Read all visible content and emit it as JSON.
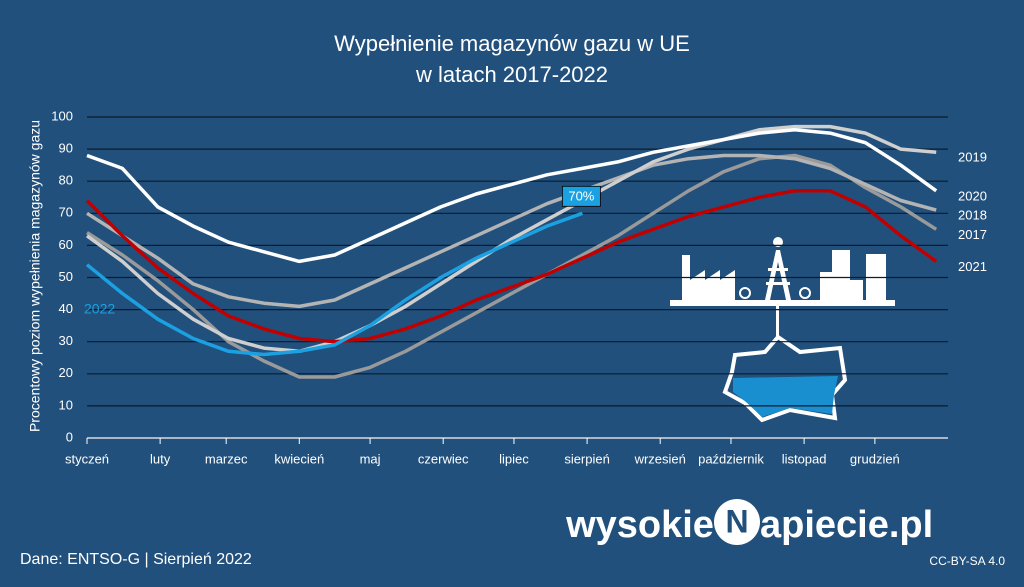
{
  "chart_data": {
    "type": "line",
    "title": [
      "Wypełnienie magazynów gazu w UE",
      "w latach 2017-2022"
    ],
    "y_label": "Procentowy poziom wypełnienia magazynów gazu",
    "x": [
      0,
      15,
      30,
      45,
      60,
      75,
      90,
      105,
      120,
      135,
      150,
      165,
      180,
      195,
      210,
      225,
      240,
      255,
      270,
      285,
      300,
      315,
      330,
      345,
      360
    ],
    "xlim": [
      0,
      365
    ],
    "xticks": [
      {
        "value": 0,
        "label": "styczeń"
      },
      {
        "value": 31,
        "label": "luty"
      },
      {
        "value": 59,
        "label": "marzec"
      },
      {
        "value": 90,
        "label": "kwiecień"
      },
      {
        "value": 120,
        "label": "maj"
      },
      {
        "value": 151,
        "label": "czerwiec"
      },
      {
        "value": 181,
        "label": "lipiec"
      },
      {
        "value": 212,
        "label": "sierpień"
      },
      {
        "value": 243,
        "label": "wrzesień"
      },
      {
        "value": 273,
        "label": "październik"
      },
      {
        "value": 304,
        "label": "listopad"
      },
      {
        "value": 334,
        "label": "grudzień"
      }
    ],
    "ylim": [
      0,
      100
    ],
    "yticks": [
      0,
      10,
      20,
      30,
      40,
      50,
      60,
      70,
      80,
      90,
      100
    ],
    "grid": true,
    "series": [
      {
        "name": "2017",
        "color": "#9a9a9a",
        "values": [
          64,
          57,
          49,
          40,
          30,
          24,
          19,
          19,
          22,
          27,
          33,
          39,
          45,
          51,
          57,
          63,
          70,
          77,
          83,
          87,
          88,
          85,
          78,
          72,
          65
        ]
      },
      {
        "name": "2018",
        "color": "#b4b4b4",
        "values": [
          70,
          63,
          56,
          48,
          44,
          42,
          41,
          43,
          48,
          53,
          58,
          63,
          68,
          73,
          77,
          81,
          85,
          87,
          88,
          88,
          87,
          84,
          79,
          74,
          71
        ]
      },
      {
        "name": "2019",
        "color": "#cfcfcf",
        "values": [
          63,
          55,
          45,
          37,
          31,
          28,
          27,
          30,
          35,
          41,
          48,
          55,
          62,
          68,
          74,
          80,
          86,
          90,
          93,
          96,
          97,
          97,
          95,
          90,
          89
        ]
      },
      {
        "name": "2020",
        "color": "#ffffff",
        "values": [
          88,
          84,
          72,
          66,
          61,
          58,
          55,
          57,
          62,
          67,
          72,
          76,
          79,
          82,
          84,
          86,
          89,
          91,
          93,
          95,
          96,
          95,
          92,
          85,
          77
        ]
      },
      {
        "name": "2021",
        "color": "#c00000",
        "values": [
          74,
          63,
          53,
          45,
          38,
          34,
          31,
          30,
          31,
          34,
          38,
          43,
          47,
          51,
          56,
          61,
          65,
          69,
          72,
          75,
          77,
          77,
          72,
          63,
          55
        ]
      },
      {
        "name": "2022",
        "color": "#1ba1e2",
        "values": [
          54,
          45,
          37,
          31,
          27,
          26,
          27,
          29,
          35,
          43,
          50,
          56,
          61,
          66,
          70,
          null,
          null,
          null,
          null,
          null,
          null,
          null,
          null,
          null,
          null
        ],
        "value_labels": [
          null,
          null,
          null,
          null,
          null,
          null,
          null,
          null,
          null,
          null,
          null,
          null,
          null,
          null,
          "70%",
          null,
          null,
          null,
          null,
          null,
          null,
          null,
          null,
          null,
          null
        ]
      }
    ]
  },
  "source": "Dane: ENTSO-G  |  Sierpień 2022",
  "logo": {
    "left": "wysokie",
    "mark": "N",
    "right": "apiecie.pl"
  },
  "license": "CC-BY-SA 4.0"
}
